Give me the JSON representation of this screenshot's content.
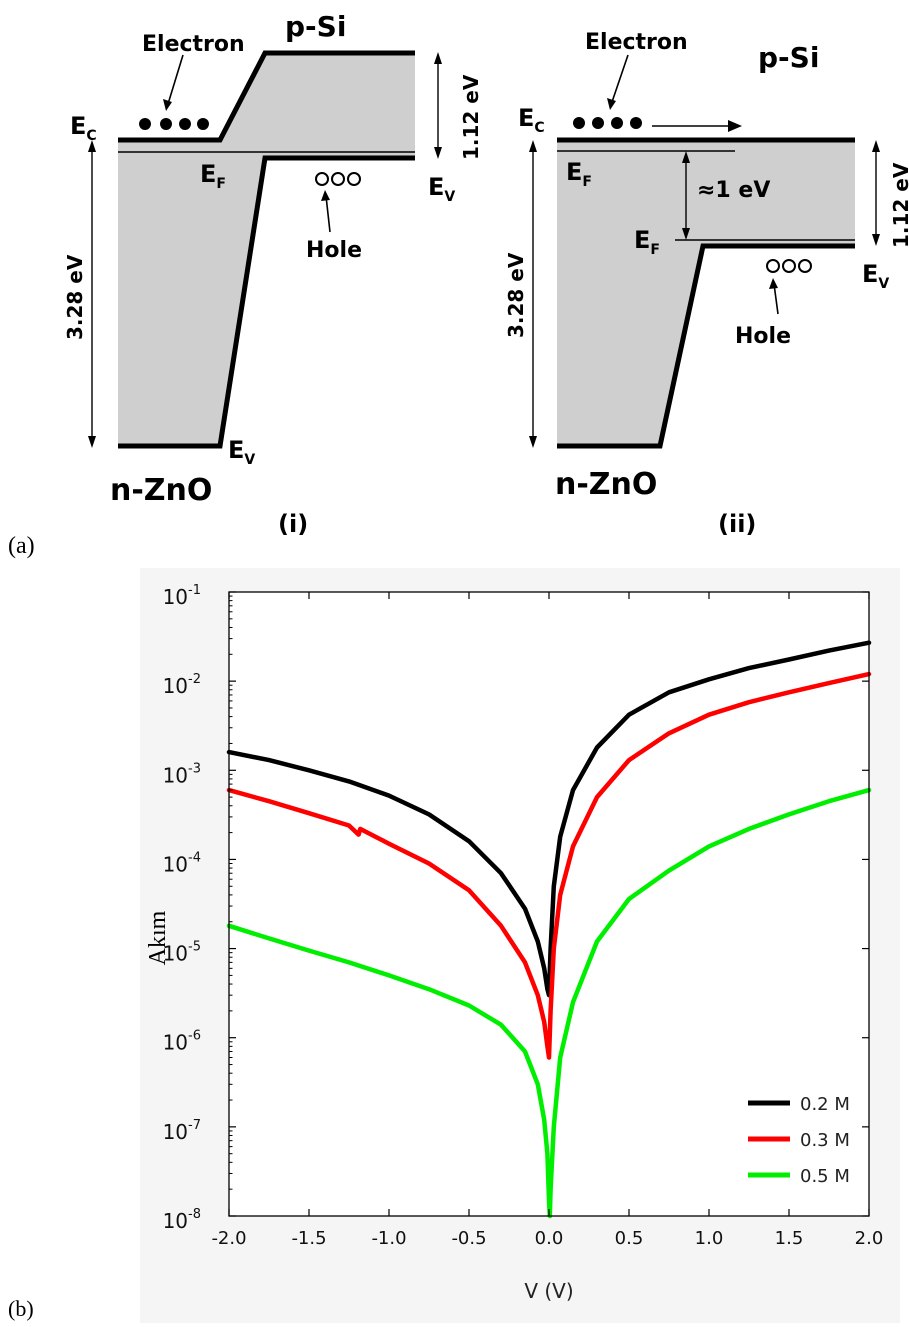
{
  "panel_a": {
    "label": "(a)",
    "diagram_i": {
      "caption": "(i)",
      "material_left": "n-ZnO",
      "material_right": "p-Si",
      "electron_label": "Electron",
      "hole_label": "Hole",
      "ec_label": "E",
      "ec_sub": "C",
      "ef_label": "E",
      "ef_sub": "F",
      "ev_right_label": "E",
      "ev_right_sub": "V",
      "ev_left_label": "E",
      "ev_left_sub": "V",
      "gap_znO": "3.28 eV",
      "gap_si": "1.12 eV"
    },
    "diagram_ii": {
      "caption": "(ii)",
      "material_left": "n-ZnO",
      "material_right": "p-Si",
      "electron_label": "Electron",
      "hole_label": "Hole",
      "ec_label": "E",
      "ec_sub": "C",
      "ef_top_label": "E",
      "ef_top_sub": "F",
      "ef_bottom_label": "E",
      "ef_bottom_sub": "F",
      "ev_label": "E",
      "ev_sub": "V",
      "shift": "≈1 eV",
      "gap_znO": "3.28 eV",
      "gap_si": "1.12 eV"
    }
  },
  "panel_b": {
    "label": "(b)"
  },
  "chart_data": {
    "type": "line",
    "xlabel": "V (V)",
    "ylabel": "Akım",
    "xlim": [
      -2.0,
      2.0
    ],
    "ylim": [
      1e-08,
      0.1
    ],
    "yscale": "log",
    "xticks": [
      "-2.0",
      "-1.5",
      "-1.0",
      "-0.5",
      "0.0",
      "0.5",
      "1.0",
      "1.5",
      "2.0"
    ],
    "yticks": [
      {
        "base": "10",
        "exp": "-1"
      },
      {
        "base": "10",
        "exp": "-2"
      },
      {
        "base": "10",
        "exp": "-3"
      },
      {
        "base": "10",
        "exp": "-4"
      },
      {
        "base": "10",
        "exp": "-5"
      },
      {
        "base": "10",
        "exp": "-6"
      },
      {
        "base": "10",
        "exp": "-7"
      },
      {
        "base": "10",
        "exp": "-8"
      }
    ],
    "legend_position": "bottom-right",
    "series": [
      {
        "name": "0.2 M",
        "color": "#000000",
        "x": [
          -2.0,
          -1.75,
          -1.5,
          -1.25,
          -1.0,
          -0.75,
          -0.5,
          -0.3,
          -0.15,
          -0.07,
          -0.03,
          -0.01,
          0.0,
          0.01,
          0.03,
          0.07,
          0.15,
          0.3,
          0.5,
          0.75,
          1.0,
          1.25,
          1.5,
          1.75,
          2.0
        ],
        "y": [
          0.0016,
          0.0013,
          0.001,
          0.00075,
          0.00052,
          0.00032,
          0.00016,
          7e-05,
          2.8e-05,
          1.2e-05,
          6e-06,
          3.5e-06,
          3e-06,
          1e-05,
          5e-05,
          0.00018,
          0.0006,
          0.0018,
          0.0042,
          0.0075,
          0.0105,
          0.014,
          0.0175,
          0.022,
          0.027
        ]
      },
      {
        "name": "0.3 M",
        "color": "#ff0000",
        "x": [
          -2.0,
          -1.75,
          -1.5,
          -1.25,
          -1.19,
          -1.18,
          -1.0,
          -0.75,
          -0.5,
          -0.3,
          -0.15,
          -0.07,
          -0.03,
          -0.01,
          0.0,
          0.01,
          0.03,
          0.07,
          0.15,
          0.3,
          0.5,
          0.75,
          1.0,
          1.25,
          1.5,
          1.75,
          2.0
        ],
        "y": [
          0.0006,
          0.00045,
          0.00033,
          0.00024,
          0.00019,
          0.00022,
          0.00015,
          9e-05,
          4.5e-05,
          1.8e-05,
          7e-06,
          3e-06,
          1.5e-06,
          8e-07,
          6e-07,
          2e-06,
          1e-05,
          4e-05,
          0.00014,
          0.0005,
          0.0013,
          0.0026,
          0.0042,
          0.0058,
          0.0075,
          0.0095,
          0.012
        ]
      },
      {
        "name": "0.5 M",
        "color": "#00ee00",
        "x": [
          -2.0,
          -1.75,
          -1.5,
          -1.25,
          -1.0,
          -0.75,
          -0.5,
          -0.3,
          -0.15,
          -0.07,
          -0.03,
          -0.01,
          0.0,
          0.005,
          0.01,
          0.03,
          0.07,
          0.15,
          0.3,
          0.5,
          0.75,
          1.0,
          1.25,
          1.5,
          1.75,
          2.0
        ],
        "y": [
          1.8e-05,
          1.3e-05,
          9.5e-06,
          7e-06,
          5e-06,
          3.5e-06,
          2.3e-06,
          1.4e-06,
          7e-07,
          3e-07,
          1.2e-07,
          5e-08,
          1.5e-08,
          1e-08,
          2e-08,
          1e-07,
          6e-07,
          2.5e-06,
          1.2e-05,
          3.6e-05,
          7.5e-05,
          0.00014,
          0.00022,
          0.00032,
          0.00045,
          0.0006
        ]
      }
    ]
  }
}
